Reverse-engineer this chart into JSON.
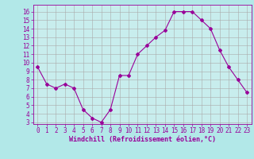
{
  "x": [
    0,
    1,
    2,
    3,
    4,
    5,
    6,
    7,
    8,
    9,
    10,
    11,
    12,
    13,
    14,
    15,
    16,
    17,
    18,
    19,
    20,
    21,
    22,
    23
  ],
  "y": [
    9.5,
    7.5,
    7.0,
    7.5,
    7.0,
    4.5,
    3.5,
    3.0,
    4.5,
    8.5,
    8.5,
    11.0,
    12.0,
    13.0,
    13.8,
    16.0,
    16.0,
    16.0,
    15.0,
    14.0,
    11.5,
    9.5,
    8.0,
    6.5
  ],
  "color": "#990099",
  "bg_color": "#b2e8e8",
  "grid_color": "#aaaaaa",
  "xlabel": "Windchill (Refroidissement éolien,°C)",
  "xlim": [
    -0.5,
    23.5
  ],
  "ylim": [
    2.8,
    16.8
  ],
  "yticks": [
    3,
    4,
    5,
    6,
    7,
    8,
    9,
    10,
    11,
    12,
    13,
    14,
    15,
    16
  ],
  "xticks": [
    0,
    1,
    2,
    3,
    4,
    5,
    6,
    7,
    8,
    9,
    10,
    11,
    12,
    13,
    14,
    15,
    16,
    17,
    18,
    19,
    20,
    21,
    22,
    23
  ],
  "marker": "D",
  "markersize": 2,
  "linewidth": 0.8,
  "xlabel_fontsize": 6,
  "tick_fontsize": 5.5,
  "axis_bg": "#c8eded"
}
